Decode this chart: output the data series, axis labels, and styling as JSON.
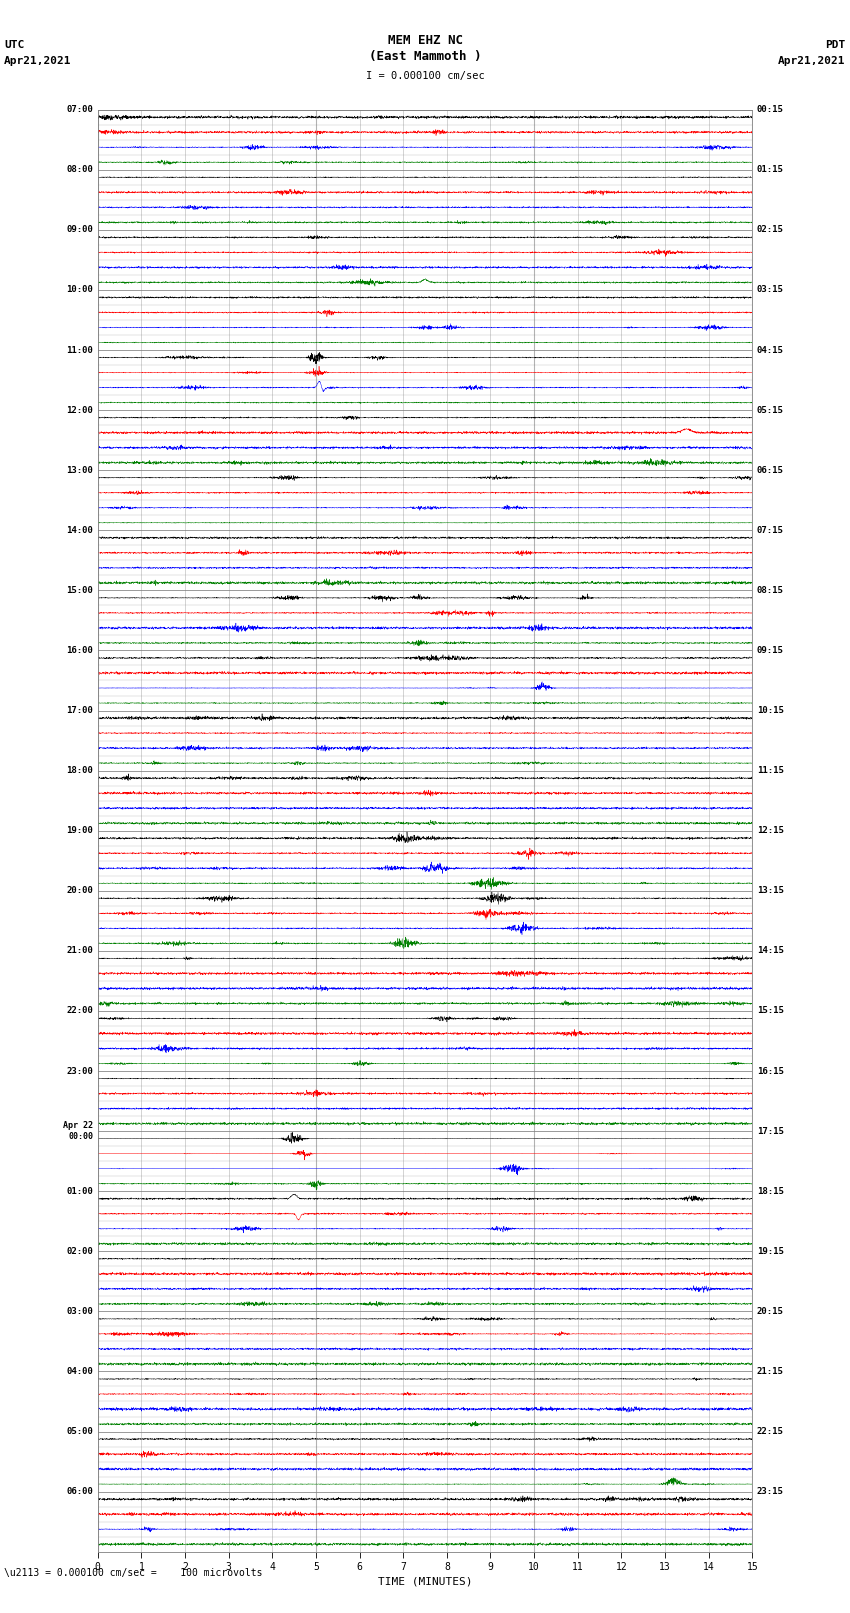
{
  "title_line1": "MEM EHZ NC",
  "title_line2": "(East Mammoth )",
  "title_line3": "I = 0.000100 cm/sec",
  "left_header_line1": "UTC",
  "left_header_line2": "Apr21,2021",
  "right_header_line1": "PDT",
  "right_header_line2": "Apr21,2021",
  "bottom_label": "TIME (MINUTES)",
  "bottom_note": "\\u2113 = 0.000100 cm/sec =    100 microvolts",
  "x_min": 0,
  "x_max": 15,
  "x_ticks": [
    0,
    1,
    2,
    3,
    4,
    5,
    6,
    7,
    8,
    9,
    10,
    11,
    12,
    13,
    14,
    15
  ],
  "figure_width": 8.5,
  "figure_height": 16.13,
  "dpi": 100,
  "trace_colors": [
    "black",
    "red",
    "blue",
    "green"
  ],
  "bg_color": "#ffffff",
  "num_hours": 24,
  "utc_labels": [
    "07:00",
    "08:00",
    "09:00",
    "10:00",
    "11:00",
    "12:00",
    "13:00",
    "14:00",
    "15:00",
    "16:00",
    "17:00",
    "18:00",
    "19:00",
    "20:00",
    "21:00",
    "22:00",
    "23:00",
    "Apr 22\n00:00",
    "01:00",
    "02:00",
    "03:00",
    "04:00",
    "05:00",
    "06:00"
  ],
  "pdt_labels": [
    "00:15",
    "01:15",
    "02:15",
    "03:15",
    "04:15",
    "05:15",
    "06:15",
    "07:15",
    "08:15",
    "09:15",
    "10:15",
    "11:15",
    "12:15",
    "13:15",
    "14:15",
    "15:15",
    "16:15",
    "17:15",
    "18:15",
    "19:15",
    "20:15",
    "21:15",
    "22:15",
    "23:15"
  ],
  "noise_base": 0.025,
  "noise_seed": 12345
}
